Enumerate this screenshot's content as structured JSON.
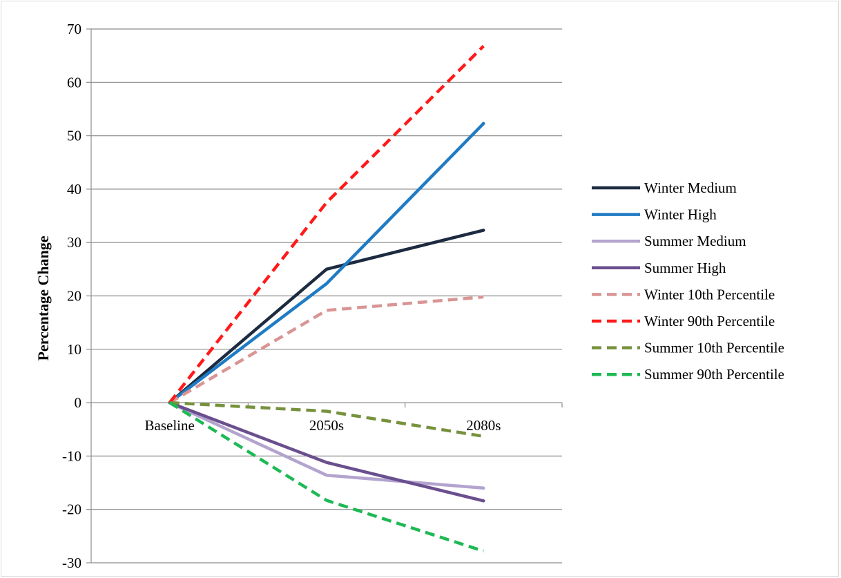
{
  "chart_data": {
    "type": "line",
    "title": "",
    "xlabel": "",
    "ylabel": "Percentage Change",
    "categories": [
      "Baseline",
      "2050s",
      "2080s"
    ],
    "ylim": [
      -30,
      70
    ],
    "yticks": [
      70,
      60,
      50,
      40,
      30,
      20,
      10,
      0,
      -10,
      -20,
      -30
    ],
    "grid": true,
    "legend_position": "right",
    "series": [
      {
        "name": "Winter Medium",
        "values": [
          0,
          25,
          32.3
        ],
        "color": "#1c2b40",
        "dash": false
      },
      {
        "name": "Winter High",
        "values": [
          0,
          22.3,
          52.3
        ],
        "color": "#1f7bc4",
        "dash": false
      },
      {
        "name": "Summer Medium",
        "values": [
          0,
          -13.6,
          -16.0
        ],
        "color": "#b3a4cf",
        "dash": false
      },
      {
        "name": "Summer High",
        "values": [
          0,
          -11.2,
          -18.4
        ],
        "color": "#6a4f8e",
        "dash": false
      },
      {
        "name": "Winter 10th Percentile",
        "values": [
          0,
          17.3,
          19.8
        ],
        "color": "#d99594",
        "dash": true
      },
      {
        "name": "Winter 90th Percentile",
        "values": [
          0,
          37.5,
          66.8
        ],
        "color": "#ff1a1a",
        "dash": true
      },
      {
        "name": "Summer 10th Percentile",
        "values": [
          0,
          -1.6,
          -6.3
        ],
        "color": "#76923c",
        "dash": true
      },
      {
        "name": "Summer 90th Percentile",
        "values": [
          0,
          -18.3,
          -27.8
        ],
        "color": "#1db954",
        "dash": true
      }
    ]
  }
}
